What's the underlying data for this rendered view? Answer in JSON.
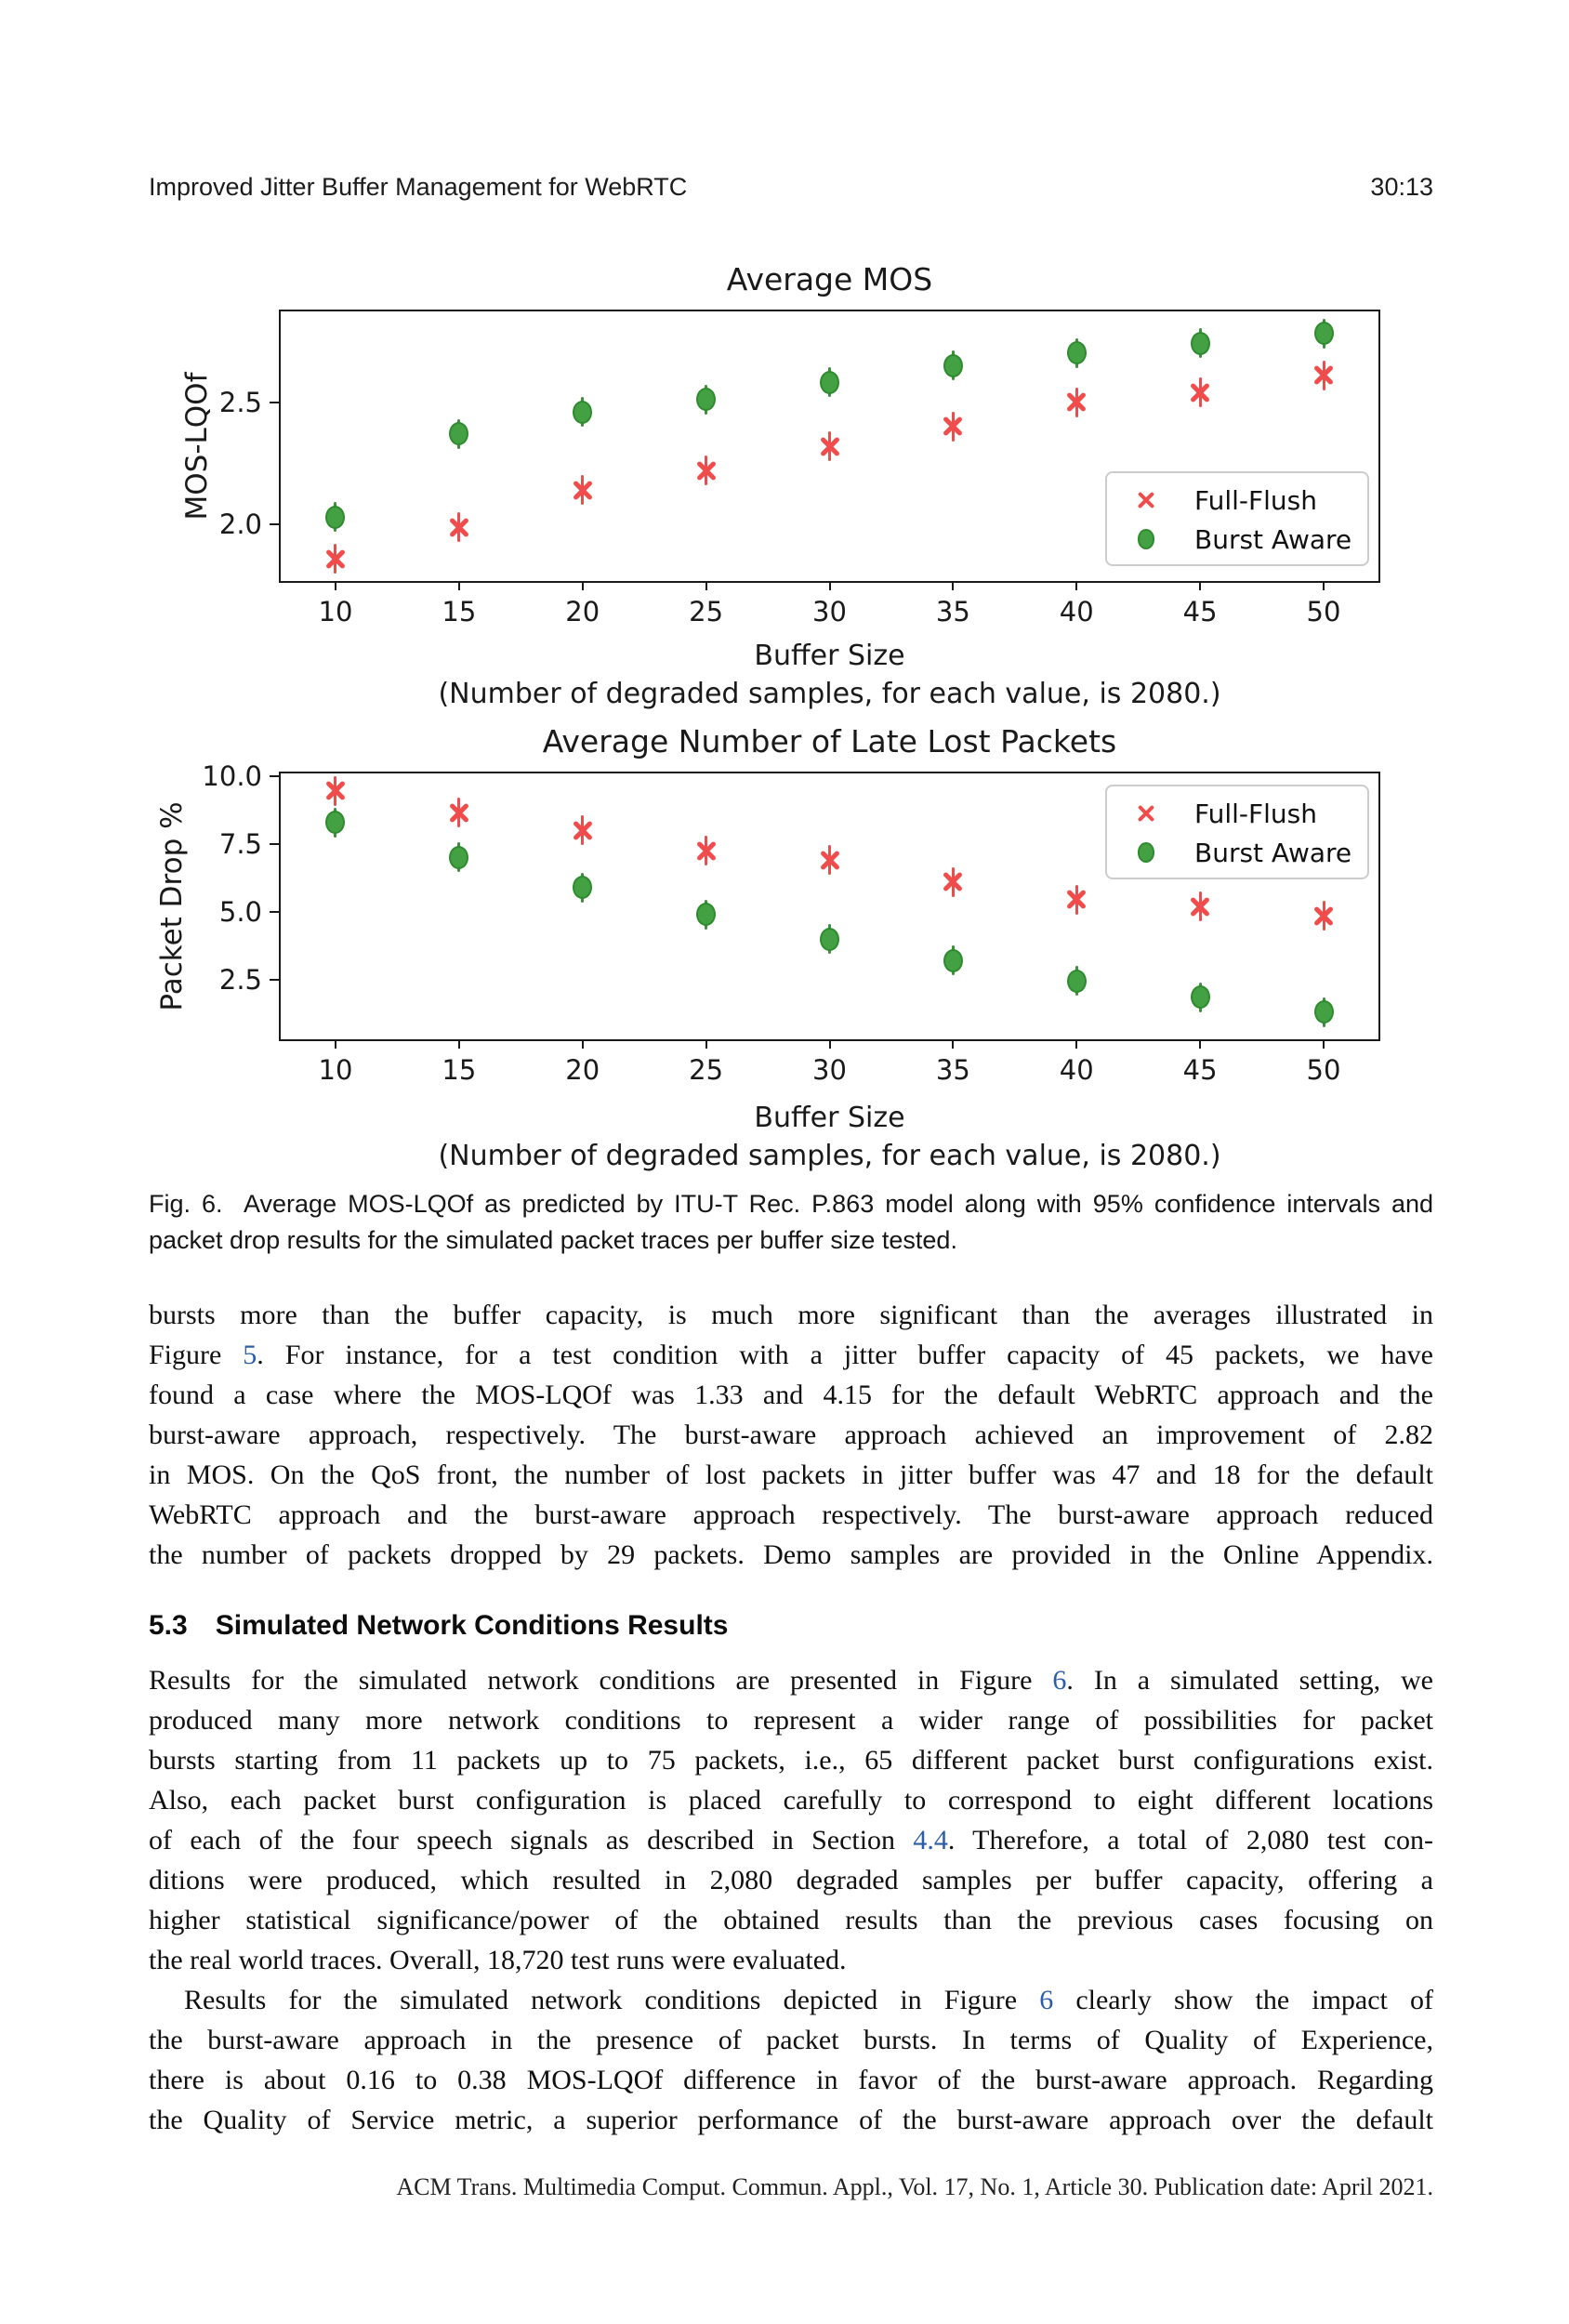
{
  "header": {
    "title": "Improved Jitter Buffer Management for WebRTC",
    "page_number": "30:13"
  },
  "figure": {
    "charts": [
      {
        "type": "scatter",
        "title": "Average MOS",
        "ylabel": "MOS-LQOf",
        "xlabel": "Buffer Size",
        "xlabel_note": "(Number of degraded samples, for each value, is 2080.)",
        "x": [
          10,
          15,
          20,
          25,
          30,
          35,
          40,
          45,
          50
        ],
        "xticks": [
          10,
          15,
          20,
          25,
          30,
          35,
          40,
          45,
          50
        ],
        "xlim": [
          7.78,
          52.22
        ],
        "ylim": [
          1.77,
          2.87
        ],
        "yticks": [
          {
            "label": "2.0",
            "value": 2.0
          },
          {
            "label": "2.5",
            "value": 2.5
          }
        ],
        "series": [
          {
            "name": "Full-Flush",
            "marker": "x",
            "color": "#f14c4c",
            "edge": "#e02f2f",
            "errorbar_color": "#e03030",
            "values": [
              1.86,
              1.99,
              2.14,
              2.22,
              2.32,
              2.4,
              2.5,
              2.54,
              2.61
            ]
          },
          {
            "name": "Burst Aware",
            "marker": "circle",
            "color": "#43a143",
            "edge": "#2e8b2e",
            "errorbar_color": "#1f7a1f",
            "values": [
              2.03,
              2.37,
              2.46,
              2.51,
              2.58,
              2.65,
              2.7,
              2.74,
              2.78
            ]
          }
        ],
        "legend": {
          "position": "bottom-right",
          "items": [
            "Full-Flush",
            "Burst Aware"
          ]
        }
      },
      {
        "type": "scatter",
        "title": "Average Number of Late Lost Packets",
        "ylabel": "Packet Drop %",
        "xlabel": "Buffer Size",
        "xlabel_note": "(Number of degraded samples, for each value, is 2080.)",
        "x": [
          10,
          15,
          20,
          25,
          30,
          35,
          40,
          45,
          50
        ],
        "xticks": [
          10,
          15,
          20,
          25,
          30,
          35,
          40,
          45,
          50
        ],
        "xlim": [
          7.78,
          52.22
        ],
        "ylim": [
          0.3,
          10.1
        ],
        "yticks": [
          {
            "label": "2.5",
            "value": 2.5
          },
          {
            "label": "5.0",
            "value": 5.0
          },
          {
            "label": "7.5",
            "value": 7.5
          },
          {
            "label": "10.0",
            "value": 10.0
          }
        ],
        "series": [
          {
            "name": "Full-Flush",
            "marker": "x",
            "color": "#f14c4c",
            "edge": "#e02f2f",
            "errorbar_color": "#e03030",
            "values": [
              9.45,
              8.65,
              8.0,
              7.25,
              6.9,
              6.1,
              5.45,
              5.2,
              4.85
            ]
          },
          {
            "name": "Burst Aware",
            "marker": "circle",
            "color": "#43a143",
            "edge": "#2e8b2e",
            "errorbar_color": "#1f7a1f",
            "values": [
              8.3,
              7.0,
              5.9,
              4.9,
              4.0,
              3.2,
              2.45,
              1.85,
              1.3
            ]
          }
        ],
        "legend": {
          "position": "top-right",
          "items": [
            "Full-Flush",
            "Burst Aware"
          ]
        }
      }
    ],
    "caption": {
      "lines": [
        {
          "seg": [
            {
              "t": "Fig. 6.  Average MOS-LQOf as predicted by ITU-T Rec. P.863 model along with 95% confidence intervals and"
            }
          ]
        },
        {
          "seg": [
            {
              "t": "packet drop results for the simulated packet traces per buffer size tested."
            }
          ],
          "last": true
        }
      ]
    }
  },
  "body": {
    "paragraph1": [
      {
        "seg": [
          {
            "t": "bursts more than the buffer capacity, is much more significant than the averages illustrated in"
          }
        ]
      },
      {
        "seg": [
          {
            "t": "Figure "
          },
          {
            "t": "5",
            "link": true
          },
          {
            "t": ". For instance, for a test condition with a jitter buffer capacity of 45 packets, we have"
          }
        ]
      },
      {
        "seg": [
          {
            "t": "found a case where the MOS-LQOf was 1.33 and 4.15 for the default WebRTC approach and the"
          }
        ]
      },
      {
        "seg": [
          {
            "t": "burst-aware approach, respectively. The burst-aware approach achieved an improvement of 2.82"
          }
        ]
      },
      {
        "seg": [
          {
            "t": "in MOS. On the QoS front, the number of lost packets in jitter buffer was 47 and 18 for the default"
          }
        ]
      },
      {
        "seg": [
          {
            "t": "WebRTC approach and the burst-aware approach respectively. The burst-aware approach reduced"
          }
        ]
      },
      {
        "seg": [
          {
            "t": "the number of packets dropped by 29 packets. Demo samples are provided in the Online Appendix."
          }
        ]
      }
    ],
    "heading": {
      "number": "5.3",
      "title": "Simulated Network Conditions Results"
    },
    "paragraph2": [
      {
        "seg": [
          {
            "t": "Results for the simulated network conditions are presented in Figure "
          },
          {
            "t": "6",
            "link": true
          },
          {
            "t": ". In a simulated setting, we"
          }
        ]
      },
      {
        "seg": [
          {
            "t": "produced many more network conditions to represent a wider range of possibilities for packet"
          }
        ]
      },
      {
        "seg": [
          {
            "t": "bursts starting from 11 packets up to 75 packets, i.e., 65 different packet burst configurations exist."
          }
        ]
      },
      {
        "seg": [
          {
            "t": "Also, each packet burst configuration is placed carefully to correspond to eight different locations"
          }
        ]
      },
      {
        "seg": [
          {
            "t": "of each of the four speech signals as described in Section "
          },
          {
            "t": "4.4",
            "link": true
          },
          {
            "t": ". Therefore, a total of 2,080 test con-"
          }
        ]
      },
      {
        "seg": [
          {
            "t": "ditions were produced, which resulted in 2,080 degraded samples per buffer capacity, offering a"
          }
        ]
      },
      {
        "seg": [
          {
            "t": "higher statistical significance/power of the obtained results than the previous cases focusing on"
          }
        ]
      },
      {
        "seg": [
          {
            "t": "the real world traces. Overall, 18,720 test runs were evaluated."
          }
        ],
        "last": true
      }
    ],
    "paragraph3": [
      {
        "seg": [
          {
            "t": "Results for the simulated network conditions depicted in Figure "
          },
          {
            "t": "6",
            "link": true
          },
          {
            "t": " clearly show the impact of"
          }
        ],
        "indent": true
      },
      {
        "seg": [
          {
            "t": "the burst-aware approach in the presence of packet bursts. In terms of Quality of Experience,"
          }
        ]
      },
      {
        "seg": [
          {
            "t": "there is about 0.16 to 0.38 MOS-LQOf difference in favor of the burst-aware approach. Regarding"
          }
        ]
      },
      {
        "seg": [
          {
            "t": "the Quality of Service metric, a superior performance of the burst-aware approach over the default"
          }
        ]
      }
    ]
  },
  "footer": {
    "text": "ACM Trans. Multimedia Comput. Commun. Appl., Vol. 17, No. 1, Article 30. Publication date: April 2021."
  }
}
